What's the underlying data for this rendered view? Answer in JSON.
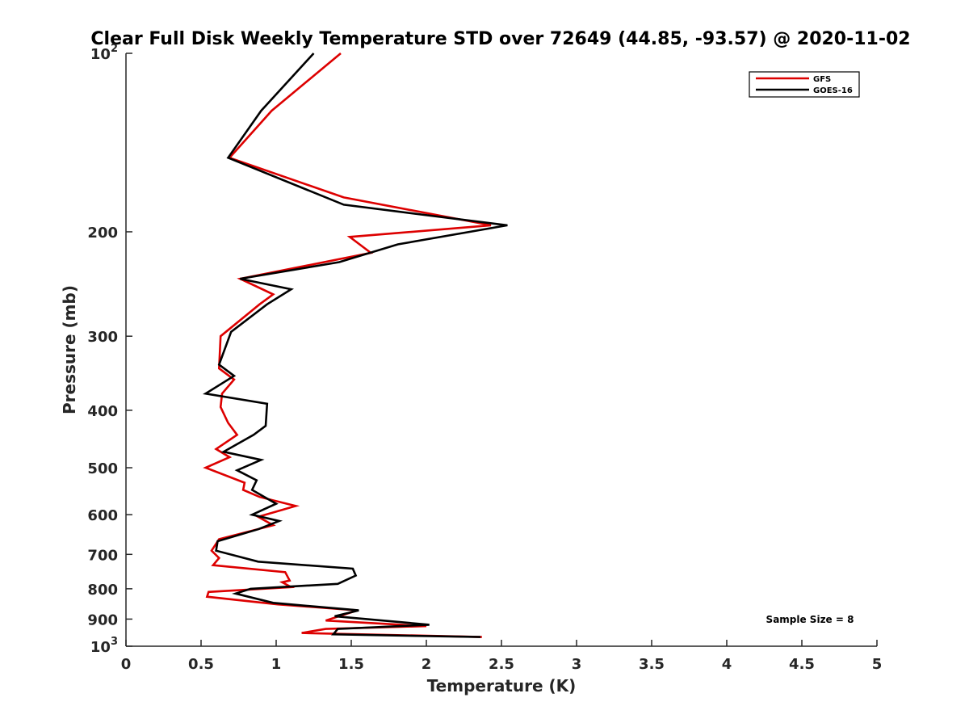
{
  "chart_data": {
    "type": "line",
    "title": "Clear Full Disk Weekly Temperature STD over 72649 (44.85, -93.57) @ 2020-11-02",
    "xlabel": "Temperature (K)",
    "ylabel": "Pressure (mb)",
    "xlim": [
      0,
      5
    ],
    "ylim": [
      100,
      1000
    ],
    "yscale": "log",
    "y_reversed": true,
    "grid": false,
    "legend_position": "top-right",
    "x_ticks": [
      "0",
      "0.5",
      "1",
      "1.5",
      "2",
      "2.5",
      "3",
      "3.5",
      "4",
      "4.5",
      "5"
    ],
    "y_ticks": [
      {
        "value": 100,
        "label": "10",
        "sup": "2"
      },
      {
        "value": 200,
        "label": "200",
        "sup": ""
      },
      {
        "value": 300,
        "label": "300",
        "sup": ""
      },
      {
        "value": 400,
        "label": "400",
        "sup": ""
      },
      {
        "value": 500,
        "label": "500",
        "sup": ""
      },
      {
        "value": 600,
        "label": "600",
        "sup": ""
      },
      {
        "value": 700,
        "label": "700",
        "sup": ""
      },
      {
        "value": 800,
        "label": "800",
        "sup": ""
      },
      {
        "value": 900,
        "label": "900",
        "sup": ""
      },
      {
        "value": 1000,
        "label": "10",
        "sup": "3"
      }
    ],
    "annotation": "Sample Size = 8",
    "series": [
      {
        "name": "GFS",
        "color": "#dd0000",
        "points": [
          [
            1.43,
            100
          ],
          [
            0.97,
            125
          ],
          [
            0.69,
            150
          ],
          [
            1.45,
            175
          ],
          [
            2.43,
            195
          ],
          [
            1.49,
            204
          ],
          [
            1.63,
            217
          ],
          [
            0.76,
            240
          ],
          [
            0.98,
            255
          ],
          [
            0.89,
            265
          ],
          [
            0.63,
            300
          ],
          [
            0.62,
            340
          ],
          [
            0.72,
            355
          ],
          [
            0.64,
            375
          ],
          [
            0.63,
            395
          ],
          [
            0.68,
            420
          ],
          [
            0.74,
            440
          ],
          [
            0.6,
            465
          ],
          [
            0.69,
            480
          ],
          [
            0.53,
            500
          ],
          [
            0.79,
            530
          ],
          [
            0.78,
            545
          ],
          [
            0.89,
            560
          ],
          [
            1.13,
            580
          ],
          [
            0.88,
            605
          ],
          [
            0.98,
            625
          ],
          [
            0.62,
            660
          ],
          [
            0.57,
            690
          ],
          [
            0.62,
            710
          ],
          [
            0.58,
            730
          ],
          [
            1.06,
            750
          ],
          [
            1.09,
            775
          ],
          [
            1.04,
            780
          ],
          [
            1.1,
            795
          ],
          [
            0.55,
            810
          ],
          [
            0.54,
            825
          ],
          [
            1.01,
            850
          ],
          [
            1.54,
            870
          ],
          [
            1.33,
            905
          ],
          [
            2.0,
            925
          ],
          [
            1.33,
            935
          ],
          [
            1.17,
            950
          ],
          [
            2.37,
            965
          ]
        ]
      },
      {
        "name": "GOES-16",
        "color": "#000000",
        "points": [
          [
            1.25,
            100
          ],
          [
            0.9,
            125
          ],
          [
            0.68,
            150
          ],
          [
            1.45,
            180
          ],
          [
            2.54,
            195
          ],
          [
            1.81,
            210
          ],
          [
            1.42,
            225
          ],
          [
            0.76,
            240
          ],
          [
            1.1,
            250
          ],
          [
            0.94,
            265
          ],
          [
            0.7,
            295
          ],
          [
            0.62,
            335
          ],
          [
            0.72,
            350
          ],
          [
            0.53,
            375
          ],
          [
            0.94,
            390
          ],
          [
            0.93,
            425
          ],
          [
            0.85,
            440
          ],
          [
            0.65,
            470
          ],
          [
            0.9,
            485
          ],
          [
            0.74,
            505
          ],
          [
            0.87,
            525
          ],
          [
            0.84,
            545
          ],
          [
            1.0,
            575
          ],
          [
            0.84,
            600
          ],
          [
            1.02,
            615
          ],
          [
            0.88,
            635
          ],
          [
            0.61,
            665
          ],
          [
            0.6,
            690
          ],
          [
            0.88,
            720
          ],
          [
            1.51,
            740
          ],
          [
            1.53,
            760
          ],
          [
            1.41,
            785
          ],
          [
            0.83,
            800
          ],
          [
            0.73,
            815
          ],
          [
            0.98,
            845
          ],
          [
            1.55,
            870
          ],
          [
            1.39,
            890
          ],
          [
            2.02,
            920
          ],
          [
            1.41,
            935
          ],
          [
            1.38,
            955
          ],
          [
            2.36,
            965
          ]
        ]
      }
    ]
  }
}
